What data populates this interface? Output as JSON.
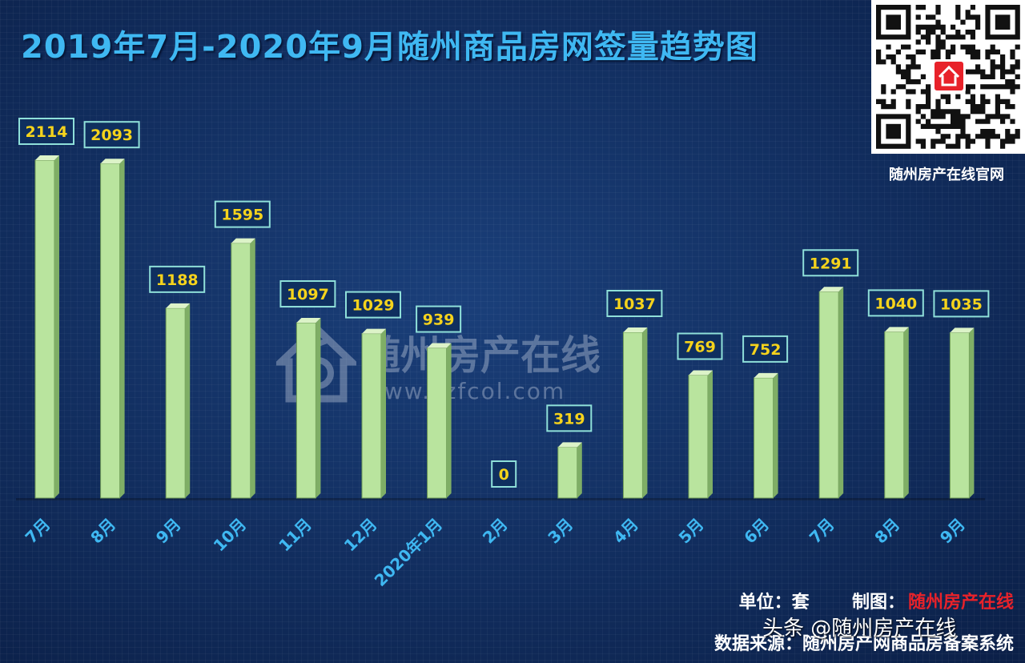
{
  "chart_data": {
    "type": "bar",
    "title": "2019年7月-2020年9月随州商品房网签量趋势图",
    "categories": [
      "7月",
      "8月",
      "9月",
      "10月",
      "11月",
      "12月",
      "2020年1月",
      "2月",
      "3月",
      "4月",
      "5月",
      "6月",
      "7月",
      "8月",
      "9月"
    ],
    "values": [
      2114,
      2093,
      1188,
      1595,
      1097,
      1029,
      939,
      0,
      319,
      1037,
      769,
      752,
      1291,
      1040,
      1035
    ],
    "xlabel": "",
    "ylabel": "",
    "ylim": [
      0,
      2200
    ],
    "grid": false,
    "legend": "none",
    "data_labels": true
  },
  "colors": {
    "title": "#3fb8f2",
    "bar_front": "#b9e49e",
    "bar_side": "#7fae66",
    "bar_top": "#dcf3c8",
    "label_bg": "#0f2f5f",
    "label_border": "#8fe0d9",
    "label_text": "#f5d31c",
    "tick_label": "#3fb8f2",
    "maker": "#e8222a"
  },
  "qr": {
    "caption": "随州房产在线官网",
    "center_icon": "house-logo-icon"
  },
  "watermark": {
    "name": "随州房产在线",
    "url": "www.szfcol.com",
    "icon": "house-logo-icon"
  },
  "footer": {
    "unit_label": "单位：",
    "unit_value": "套",
    "maker_label": "制图：",
    "maker_value": "随州房产在线",
    "source_label": "数据来源：",
    "source_value": "随州房产网商品房备案系统"
  },
  "overlay": {
    "toutiao": "头条 @随州房产在线"
  }
}
